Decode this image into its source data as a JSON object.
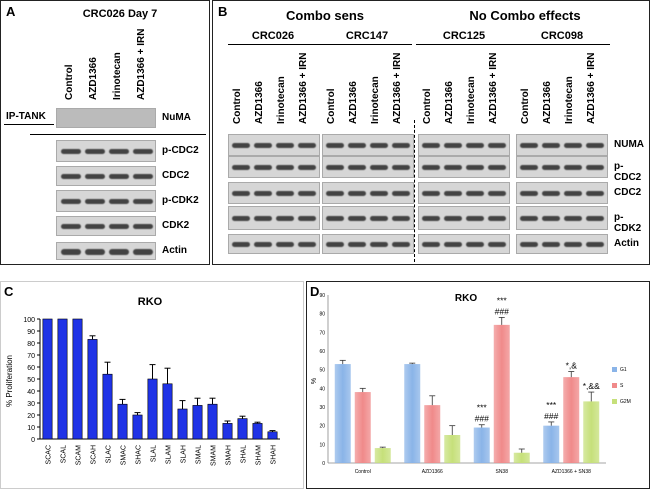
{
  "panels": {
    "A": {
      "label": "A",
      "title": "CRC026 Day 7",
      "ip_label": "IP-TANK",
      "lanes": [
        "Control",
        "AZD1366",
        "Irinotecan",
        "AZD1366 + IRN"
      ],
      "rows": [
        "NuMA",
        "p-CDC2",
        "CDC2",
        "p-CDK2",
        "CDK2",
        "Actin"
      ]
    },
    "B": {
      "label": "B",
      "headers": [
        "Combo sens",
        "No Combo effects"
      ],
      "groups": [
        "CRC026",
        "CRC147",
        "CRC125",
        "CRC098"
      ],
      "lanes": [
        "Control",
        "AZD1366",
        "Irinotecan",
        "AZD1366 + IRN"
      ],
      "rows": [
        "NUMA",
        "p-CDC2",
        "CDC2",
        "p-CDK2",
        "Actin"
      ]
    },
    "C": {
      "label": "C"
    },
    "D": {
      "label": "D"
    }
  },
  "chart_data": [
    {
      "type": "bar",
      "title": "RKO",
      "ylabel": "% Proliferation",
      "ylim": [
        0,
        100
      ],
      "yticks": [
        0,
        10,
        20,
        30,
        40,
        50,
        60,
        70,
        80,
        90,
        100
      ],
      "color": "#1f33e6",
      "categories": [
        "SCAC",
        "SCAL",
        "SCAM",
        "SCAH",
        "SLAC",
        "SMAC",
        "SHAC",
        "SLAL",
        "SLAM",
        "SLAH",
        "SMAL",
        "SMAM",
        "SMAH",
        "SHAL",
        "SHAM",
        "SHAH"
      ],
      "values": [
        100,
        100,
        100,
        83,
        54,
        29,
        20,
        50,
        46,
        25,
        28,
        29,
        13,
        17,
        13,
        6
      ],
      "errors": [
        0,
        0,
        0,
        3,
        10,
        4,
        2,
        12,
        13,
        7,
        6,
        5,
        2,
        2,
        1,
        1
      ]
    },
    {
      "type": "bar",
      "title": "RKO",
      "ylabel": "%",
      "ylim": [
        0,
        90
      ],
      "yticks": [
        0,
        10,
        20,
        30,
        40,
        50,
        60,
        70,
        80,
        90
      ],
      "categories": [
        "Control",
        "AZD1366",
        "SN38",
        "AZD1366 + SN38"
      ],
      "series": [
        {
          "name": "G1",
          "color": "#8ab4e8",
          "values": [
            53,
            53,
            19,
            20
          ],
          "errors": [
            2,
            0.5,
            1.5,
            2
          ]
        },
        {
          "name": "S",
          "color": "#f08a8a",
          "values": [
            38,
            31,
            74,
            46
          ],
          "errors": [
            2,
            5,
            4,
            3
          ]
        },
        {
          "name": "G2M",
          "color": "#c6e07a",
          "values": [
            8,
            15,
            5.5,
            33
          ],
          "errors": [
            0.5,
            5,
            2,
            5
          ]
        }
      ],
      "annotations": [
        {
          "category": "SN38",
          "series": "G1",
          "lines": [
            "***",
            "###"
          ]
        },
        {
          "category": "SN38",
          "series": "S",
          "lines": [
            "***",
            "###"
          ]
        },
        {
          "category": "AZD1366 + SN38",
          "series": "G1",
          "lines": [
            "***",
            "###"
          ]
        },
        {
          "category": "AZD1366 + SN38",
          "series": "S",
          "lines": [
            "*,&"
          ]
        },
        {
          "category": "AZD1366 + SN38",
          "series": "G2M",
          "lines": [
            "*,&&"
          ]
        }
      ]
    }
  ]
}
